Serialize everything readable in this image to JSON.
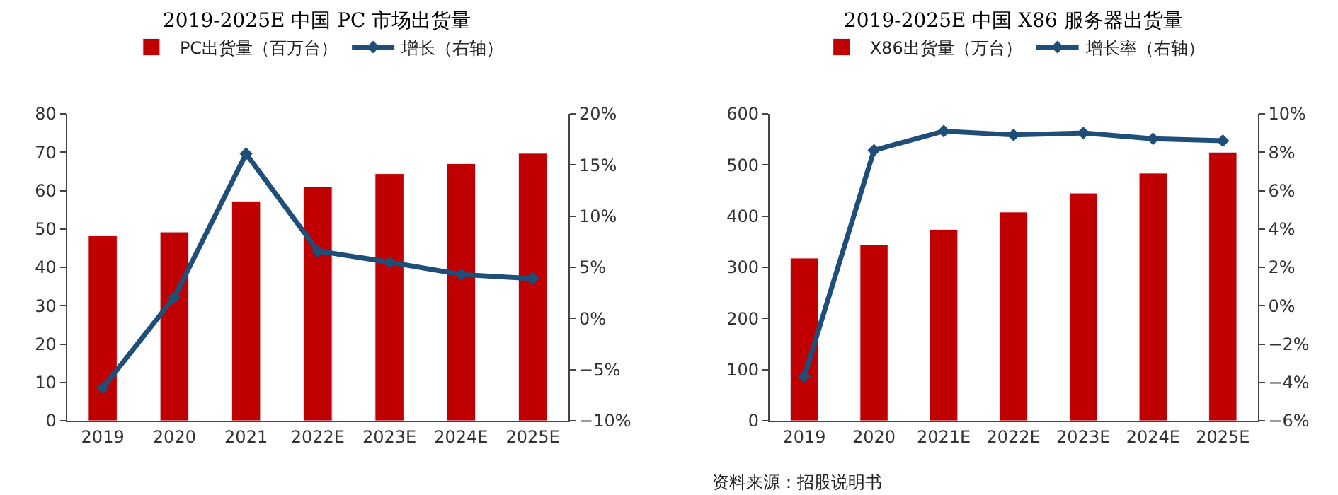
{
  "chart_data": [
    {
      "type": "bar",
      "title": "2019-2025E 中国 PC 市场出货量",
      "categories": [
        "2019",
        "2020",
        "2021",
        "2022E",
        "2023E",
        "2024E",
        "2025E"
      ],
      "series": [
        {
          "name": "PC出货量（百万台）",
          "color": "#c00000",
          "values": [
            48.2,
            49.2,
            57.2,
            61.0,
            64.4,
            67.0,
            69.7
          ]
        },
        {
          "name": "增长（右轴）",
          "type": "line",
          "axis": "y2",
          "color": "#1f4e79",
          "marker": "diamond",
          "line_style": "solid",
          "values": [
            -6.8,
            2.1,
            16.1,
            6.6,
            5.5,
            4.3,
            3.9
          ]
        }
      ],
      "ylim": [
        0,
        80
      ],
      "yticks": [
        0,
        10,
        20,
        30,
        40,
        50,
        60,
        70,
        80
      ],
      "y2lim": [
        -10,
        20
      ],
      "y2ticks": [
        {
          "value": -10,
          "label": "−10%"
        },
        {
          "value": -5,
          "label": "−5%"
        },
        {
          "value": 0,
          "label": "0%"
        },
        {
          "value": 5,
          "label": "5%"
        },
        {
          "value": 10,
          "label": "10%"
        },
        {
          "value": 15,
          "label": "15%"
        },
        {
          "value": 20,
          "label": "20%"
        }
      ],
      "legend": "top"
    },
    {
      "type": "bar",
      "title": "2019-2025E 中国 X86 服务器出货量",
      "categories": [
        "2019",
        "2020",
        "2021E",
        "2022E",
        "2023E",
        "2024E",
        "2025E"
      ],
      "series": [
        {
          "name": "X86出货量（万台）",
          "color": "#c00000",
          "values": [
            318,
            344,
            374,
            408,
            445,
            484,
            525
          ]
        },
        {
          "name": "增长率（右轴）",
          "type": "line",
          "axis": "y2",
          "color": "#1f4e79",
          "marker": "diamond",
          "line_style": "solid",
          "values": [
            -3.7,
            8.1,
            9.1,
            8.9,
            9.0,
            8.7,
            8.6
          ]
        }
      ],
      "ylim": [
        0,
        600
      ],
      "yticks": [
        0,
        100,
        200,
        300,
        400,
        500,
        600
      ],
      "y2lim": [
        -6,
        10
      ],
      "y2ticks": [
        {
          "value": -6,
          "label": "−6%"
        },
        {
          "value": -4,
          "label": "−4%"
        },
        {
          "value": -2,
          "label": "−2%"
        },
        {
          "value": 0,
          "label": "0%"
        },
        {
          "value": 2,
          "label": "2%"
        },
        {
          "value": 4,
          "label": "4%"
        },
        {
          "value": 6,
          "label": "6%"
        },
        {
          "value": 8,
          "label": "8%"
        },
        {
          "value": 10,
          "label": "10%"
        }
      ],
      "annotations": [
        "资料来源：招股说明书"
      ],
      "legend": "top"
    }
  ]
}
